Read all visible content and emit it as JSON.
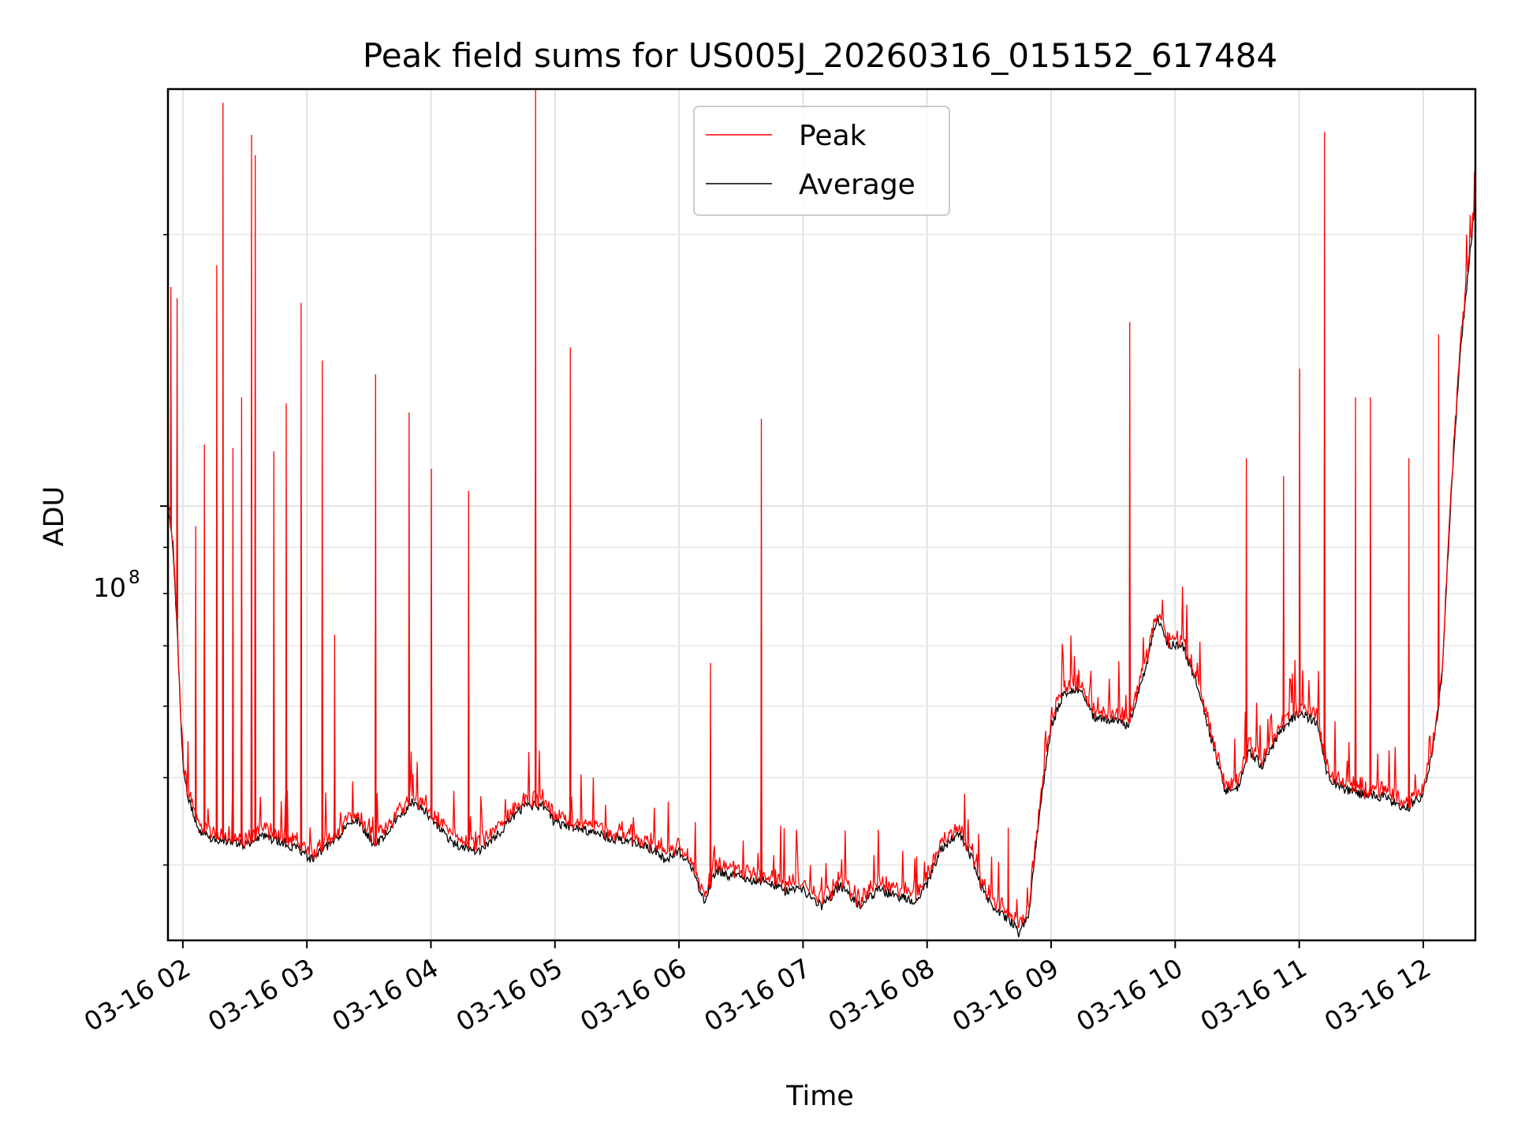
{
  "chart_data": {
    "type": "line",
    "title": "Peak field sums for US005J_20260316_015152_617484",
    "xlabel": "Time",
    "ylabel": "ADU",
    "y_scale": "log",
    "ylim": [
      33000000,
      290000000
    ],
    "xlim": [
      -0.12,
      10.42
    ],
    "grid": true,
    "legend_position": "top-center",
    "x_tick_labels": [
      "03-16 02",
      "03-16 03",
      "03-16 04",
      "03-16 05",
      "03-16 06",
      "03-16 07",
      "03-16 08",
      "03-16 09",
      "03-16 10",
      "03-16 11",
      "03-16 12"
    ],
    "x_tick_values": [
      0,
      1,
      2,
      3,
      4,
      5,
      6,
      7,
      8,
      9,
      10
    ],
    "y_tick_label": "10",
    "y_tick_exponent": "8",
    "y_tick_value": 100000000,
    "y_minor_ticks": [
      40000000,
      50000000,
      60000000,
      70000000,
      80000000,
      90000000,
      200000000
    ],
    "x_units": "hours since 03-16 02:00",
    "series": [
      {
        "name": "Average",
        "color": "#000000",
        "points": [
          [
            -0.12,
            100000000
          ],
          [
            -0.08,
            90000000
          ],
          [
            -0.05,
            75000000
          ],
          [
            -0.02,
            60000000
          ],
          [
            0.0,
            52000000
          ],
          [
            0.05,
            47000000
          ],
          [
            0.12,
            44000000
          ],
          [
            0.2,
            43000000
          ],
          [
            0.35,
            42500000
          ],
          [
            0.5,
            42000000
          ],
          [
            0.65,
            43000000
          ],
          [
            0.8,
            42500000
          ],
          [
            0.95,
            41500000
          ],
          [
            1.05,
            40500000
          ],
          [
            1.2,
            42500000
          ],
          [
            1.4,
            45000000
          ],
          [
            1.55,
            42000000
          ],
          [
            1.7,
            44500000
          ],
          [
            1.85,
            47000000
          ],
          [
            1.95,
            46000000
          ],
          [
            2.05,
            44000000
          ],
          [
            2.2,
            42000000
          ],
          [
            2.4,
            41500000
          ],
          [
            2.55,
            43500000
          ],
          [
            2.75,
            46500000
          ],
          [
            2.9,
            46500000
          ],
          [
            3.0,
            44500000
          ],
          [
            3.2,
            44000000
          ],
          [
            3.4,
            43000000
          ],
          [
            3.6,
            42500000
          ],
          [
            3.8,
            41500000
          ],
          [
            3.9,
            40500000
          ],
          [
            4.0,
            41500000
          ],
          [
            4.1,
            40000000
          ],
          [
            4.2,
            36500000
          ],
          [
            4.3,
            39500000
          ],
          [
            4.4,
            39000000
          ],
          [
            4.55,
            38500000
          ],
          [
            4.7,
            38500000
          ],
          [
            4.85,
            37500000
          ],
          [
            5.0,
            37500000
          ],
          [
            5.15,
            36000000
          ],
          [
            5.3,
            38000000
          ],
          [
            5.45,
            36000000
          ],
          [
            5.6,
            37500000
          ],
          [
            5.75,
            37000000
          ],
          [
            5.9,
            36500000
          ],
          [
            6.0,
            38000000
          ],
          [
            6.1,
            41500000
          ],
          [
            6.25,
            43500000
          ],
          [
            6.35,
            41000000
          ],
          [
            6.45,
            37500000
          ],
          [
            6.55,
            35500000
          ],
          [
            6.65,
            35000000
          ],
          [
            6.75,
            33500000
          ],
          [
            6.82,
            35500000
          ],
          [
            6.9,
            45000000
          ],
          [
            7.0,
            57000000
          ],
          [
            7.1,
            62000000
          ],
          [
            7.25,
            62500000
          ],
          [
            7.35,
            58000000
          ],
          [
            7.5,
            58000000
          ],
          [
            7.62,
            57000000
          ],
          [
            7.75,
            65000000
          ],
          [
            7.85,
            75000000
          ],
          [
            7.95,
            70000000
          ],
          [
            8.05,
            70500000
          ],
          [
            8.15,
            65000000
          ],
          [
            8.25,
            58000000
          ],
          [
            8.4,
            48500000
          ],
          [
            8.5,
            48500000
          ],
          [
            8.6,
            53500000
          ],
          [
            8.7,
            51500000
          ],
          [
            8.85,
            56500000
          ],
          [
            9.0,
            59000000
          ],
          [
            9.15,
            57500000
          ],
          [
            9.22,
            50500000
          ],
          [
            9.35,
            48500000
          ],
          [
            9.5,
            48000000
          ],
          [
            9.7,
            47500000
          ],
          [
            9.85,
            46000000
          ],
          [
            10.0,
            48000000
          ],
          [
            10.08,
            54000000
          ],
          [
            10.15,
            65000000
          ],
          [
            10.22,
            100000000
          ],
          [
            10.3,
            150000000
          ],
          [
            10.36,
            180000000
          ],
          [
            10.42,
            220000000
          ]
        ]
      },
      {
        "name": "Peak",
        "color": "#ff0000",
        "spikes": [
          [
            -0.1,
            175000000
          ],
          [
            -0.05,
            170000000
          ],
          [
            0.1,
            95000000
          ],
          [
            0.17,
            117000000
          ],
          [
            0.27,
            185000000
          ],
          [
            0.32,
            280000000
          ],
          [
            0.4,
            116000000
          ],
          [
            0.47,
            132000000
          ],
          [
            0.55,
            258000000
          ],
          [
            0.58,
            245000000
          ],
          [
            0.73,
            115000000
          ],
          [
            0.83,
            130000000
          ],
          [
            0.95,
            168000000
          ],
          [
            1.12,
            145000000
          ],
          [
            1.22,
            72000000
          ],
          [
            1.55,
            140000000
          ],
          [
            1.82,
            127000000
          ],
          [
            2.0,
            110000000
          ],
          [
            2.3,
            104000000
          ],
          [
            2.84,
            290000000
          ],
          [
            3.12,
            150000000
          ],
          [
            4.25,
            67000000
          ],
          [
            4.66,
            125000000
          ],
          [
            6.65,
            44000000
          ],
          [
            7.63,
            160000000
          ],
          [
            8.57,
            113000000
          ],
          [
            8.87,
            108000000
          ],
          [
            9.0,
            142000000
          ],
          [
            9.2,
            260000000
          ],
          [
            9.45,
            132000000
          ],
          [
            9.57,
            132000000
          ],
          [
            9.88,
            113000000
          ],
          [
            10.12,
            155000000
          ]
        ]
      }
    ]
  }
}
